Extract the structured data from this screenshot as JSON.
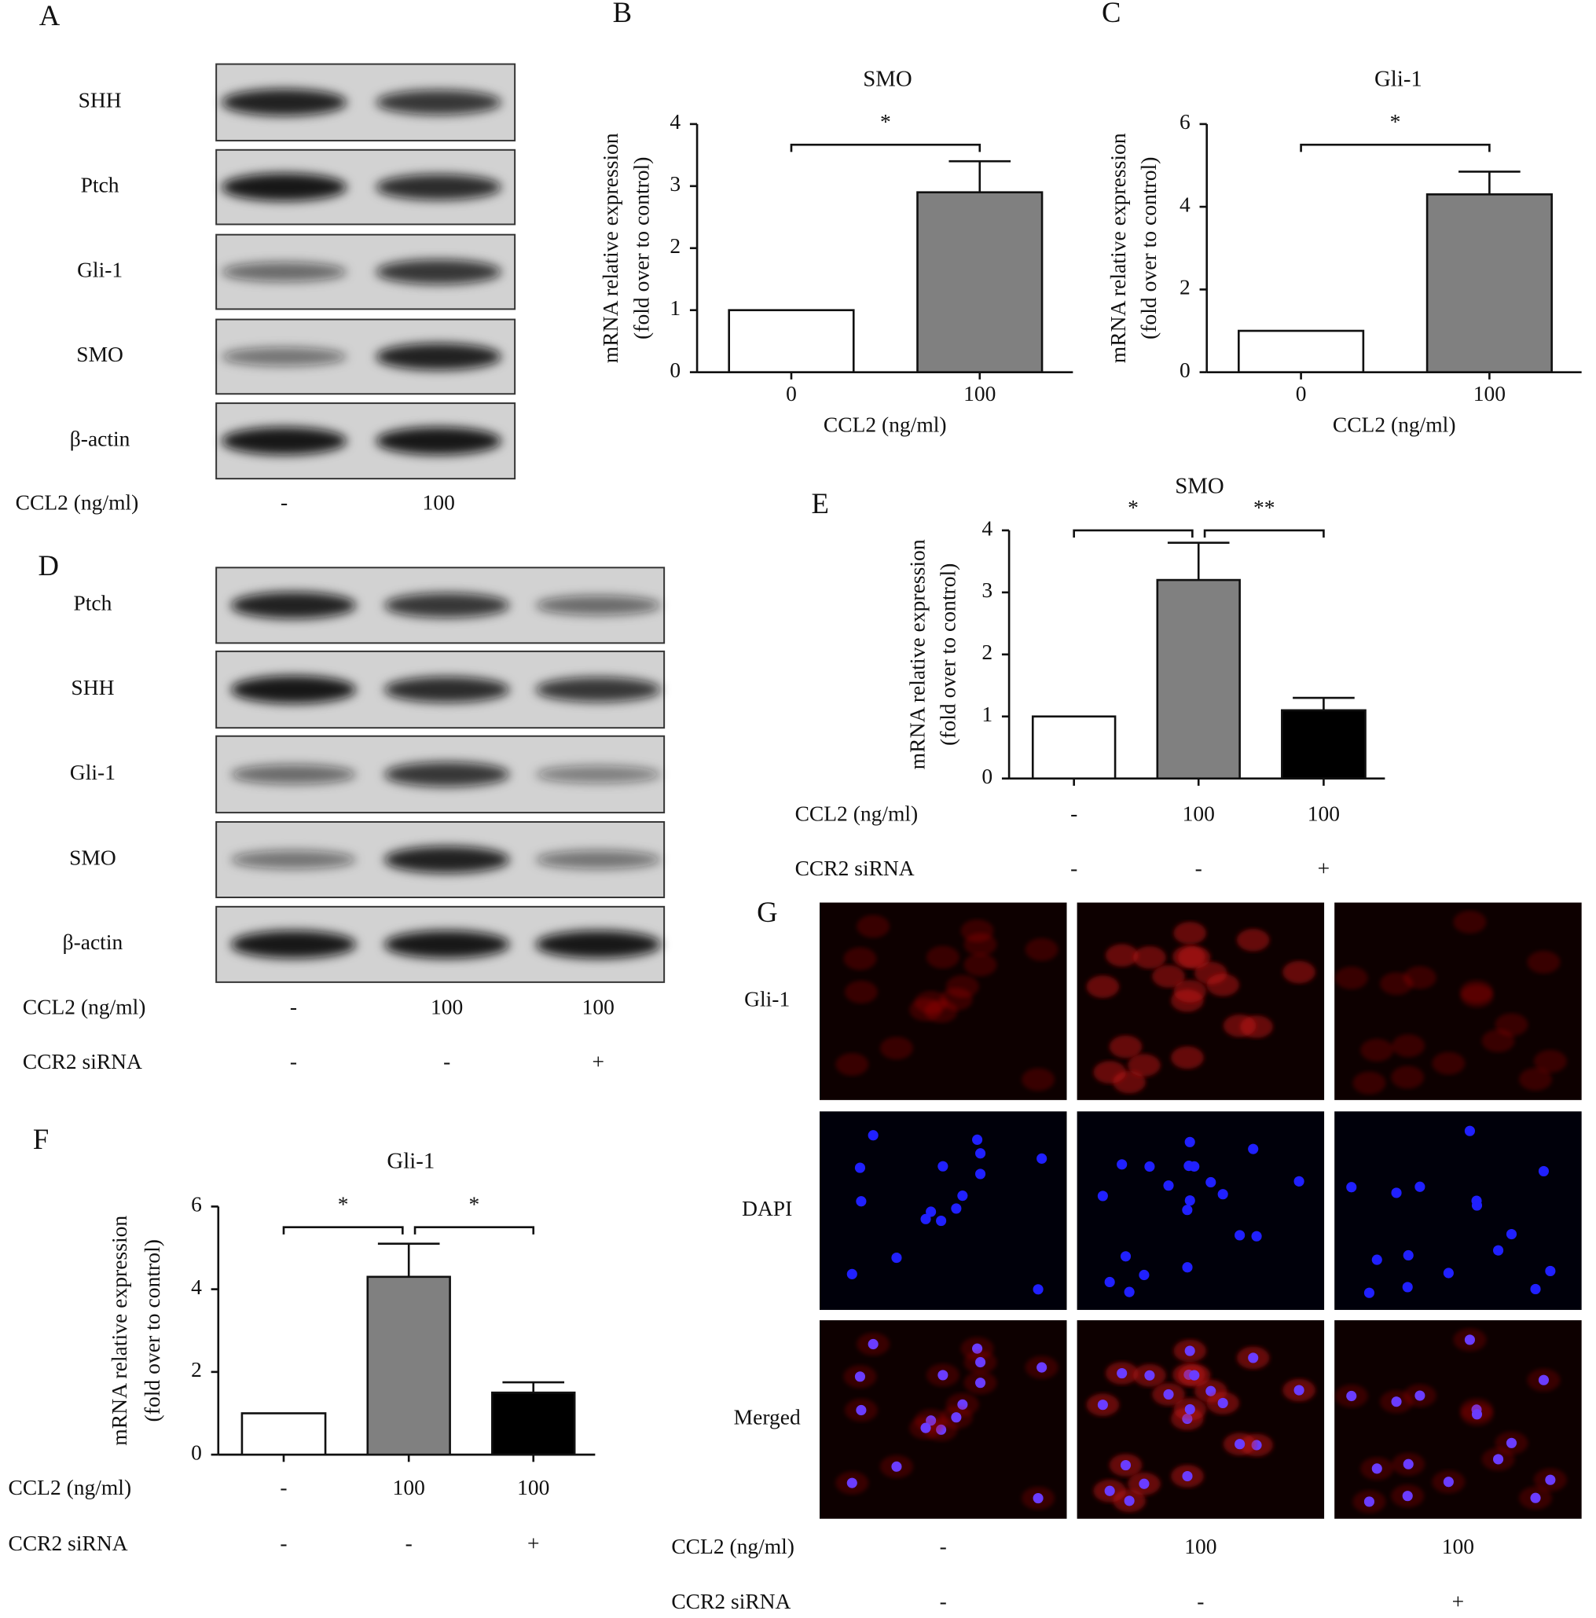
{
  "chart_data": [
    {
      "type": "bar",
      "panel_label": "B",
      "title": "SMO",
      "ylabel": [
        "mRNA relative expression",
        "(fold over to control)"
      ],
      "xlabel": "CCL2 (ng/ml)",
      "categories": [
        "0",
        "100"
      ],
      "values": [
        1,
        2.9
      ],
      "errors": [
        0,
        0.5
      ],
      "colors": [
        "#ffffff",
        "#808080"
      ],
      "ylim": [
        0,
        4
      ],
      "yticks": [
        0,
        1,
        2,
        3,
        4
      ],
      "significance": [
        {
          "from": 0,
          "to": 1,
          "label": "*"
        }
      ]
    },
    {
      "type": "bar",
      "panel_label": "C",
      "title": "Gli-1",
      "ylabel": [
        "mRNA relative expression",
        "(fold over to control)"
      ],
      "xlabel": "CCL2 (ng/ml)",
      "categories": [
        "0",
        "100"
      ],
      "values": [
        1,
        4.3
      ],
      "errors": [
        0,
        0.55
      ],
      "colors": [
        "#ffffff",
        "#808080"
      ],
      "ylim": [
        0,
        6
      ],
      "yticks": [
        0,
        2,
        4,
        6
      ],
      "significance": [
        {
          "from": 0,
          "to": 1,
          "label": "*"
        }
      ]
    },
    {
      "type": "bar",
      "panel_label": "E",
      "title": "SMO",
      "ylabel": [
        "mRNA relative expression",
        "(fold over to control)"
      ],
      "values": [
        1,
        3.2,
        1.1
      ],
      "errors": [
        0,
        0.6,
        0.2
      ],
      "colors": [
        "#ffffff",
        "#808080",
        "#000000"
      ],
      "ylim": [
        0,
        4
      ],
      "yticks": [
        0,
        1,
        2,
        3,
        4
      ],
      "conditions": [
        {
          "label": "CCL2 (ng/ml)",
          "values": [
            "-",
            "100",
            "100"
          ]
        },
        {
          "label": "CCR2 siRNA",
          "values": [
            "-",
            "-",
            "+"
          ]
        }
      ],
      "significance": [
        {
          "from": 0,
          "to": 1,
          "label": "*"
        },
        {
          "from": 1,
          "to": 2,
          "label": "**"
        }
      ]
    },
    {
      "type": "bar",
      "panel_label": "F",
      "title": "Gli-1",
      "ylabel": [
        "mRNA relative expression",
        "(fold over to control)"
      ],
      "values": [
        1,
        4.3,
        1.5
      ],
      "errors": [
        0,
        0.8,
        0.25
      ],
      "colors": [
        "#ffffff",
        "#808080",
        "#000000"
      ],
      "ylim": [
        0,
        6
      ],
      "yticks": [
        0,
        2,
        4,
        6
      ],
      "conditions": [
        {
          "label": "CCL2 (ng/ml)",
          "values": [
            "-",
            "100",
            "100"
          ]
        },
        {
          "label": "CCR2 siRNA",
          "values": [
            "-",
            "-",
            "+"
          ]
        }
      ],
      "significance": [
        {
          "from": 0,
          "to": 1,
          "label": "*"
        },
        {
          "from": 1,
          "to": 2,
          "label": "*"
        }
      ]
    }
  ],
  "blots": [
    {
      "panel_label": "A",
      "rows": [
        "SHH",
        "Ptch",
        "Gli-1",
        "SMO",
        "β-actin"
      ],
      "conditions": [
        {
          "label": "CCL2 (ng/ml)",
          "values": [
            "-",
            "100"
          ]
        }
      ]
    },
    {
      "panel_label": "D",
      "rows": [
        "Ptch",
        "SHH",
        "Gli-1",
        "SMO",
        "β-actin"
      ],
      "conditions": [
        {
          "label": "CCL2 (ng/ml)",
          "values": [
            "-",
            "100",
            "100"
          ]
        },
        {
          "label": "CCR2 siRNA",
          "values": [
            "-",
            "-",
            "+"
          ]
        }
      ]
    }
  ],
  "fluorescence": {
    "panel_label": "G",
    "rows": [
      {
        "label": "Gli-1",
        "color": "#e0202a"
      },
      {
        "label": "DAPI",
        "color": "#2a6fd0"
      },
      {
        "label": "Merged",
        "color": "#111111"
      }
    ],
    "conditions": [
      {
        "label": "CCL2 (ng/ml)",
        "values": [
          "-",
          "100",
          "100"
        ]
      },
      {
        "label": "CCR2 siRNA",
        "values": [
          "-",
          "-",
          "+"
        ]
      }
    ]
  }
}
